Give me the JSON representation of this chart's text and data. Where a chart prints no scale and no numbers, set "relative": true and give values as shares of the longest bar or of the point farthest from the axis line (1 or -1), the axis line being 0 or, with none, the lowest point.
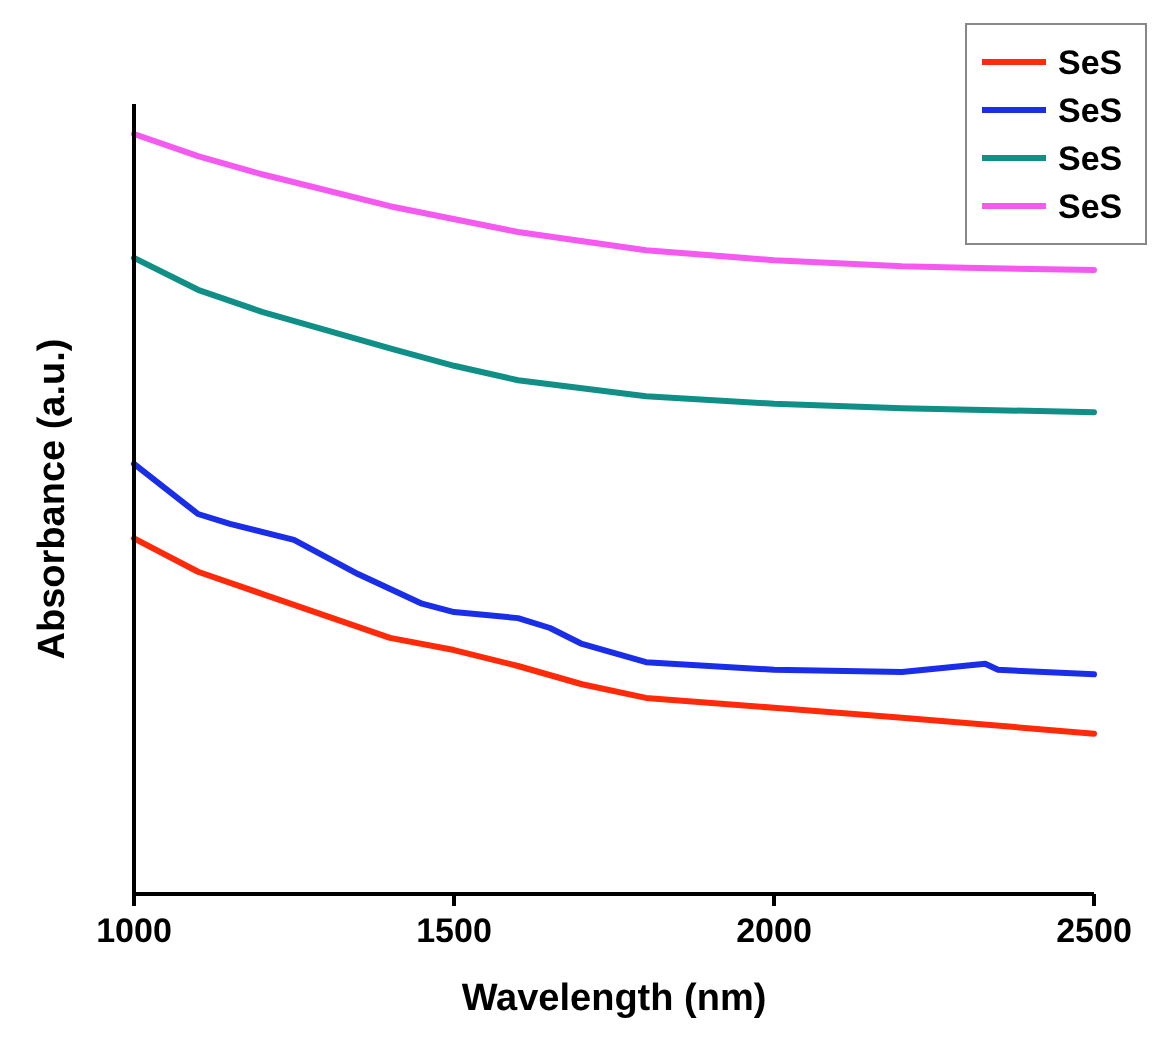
{
  "chart_data": {
    "type": "line",
    "relative": true,
    "xlabel": "Wavelength (nm)",
    "ylabel": "Absorbance (a.u.)",
    "xlim": [
      1000,
      2500
    ],
    "xticks": [
      1000,
      1500,
      2000,
      2500
    ],
    "legend": "top right",
    "line_style": "solid",
    "series": [
      {
        "name": "SeS",
        "color": "#ff2a0a",
        "x": [
          1000,
          1100,
          1200,
          1300,
          1400,
          1500,
          1600,
          1700,
          1800,
          2000,
          2200,
          2500
        ],
        "values": [
          0.468,
          0.424,
          0.395,
          0.366,
          0.337,
          0.321,
          0.3,
          0.276,
          0.258,
          0.245,
          0.232,
          0.211
        ]
      },
      {
        "name": "SeS",
        "color": "#1a2ee8",
        "x": [
          1000,
          1100,
          1150,
          1250,
          1350,
          1450,
          1500,
          1600,
          1650,
          1700,
          1800,
          2000,
          2200,
          2330,
          2350,
          2500
        ],
        "values": [
          0.566,
          0.5,
          0.487,
          0.466,
          0.421,
          0.382,
          0.371,
          0.363,
          0.35,
          0.329,
          0.305,
          0.295,
          0.292,
          0.303,
          0.295,
          0.289
        ]
      },
      {
        "name": "SeS",
        "color": "#0f8f86",
        "x": [
          1000,
          1100,
          1200,
          1400,
          1500,
          1600,
          1800,
          2000,
          2200,
          2500
        ],
        "values": [
          0.837,
          0.795,
          0.766,
          0.718,
          0.695,
          0.676,
          0.655,
          0.645,
          0.639,
          0.634
        ]
      },
      {
        "name": "SeS",
        "color": "#f55af0",
        "x": [
          1000,
          1100,
          1200,
          1400,
          1600,
          1800,
          2000,
          2200,
          2300,
          2500
        ],
        "values": [
          1.0,
          0.971,
          0.947,
          0.905,
          0.871,
          0.847,
          0.834,
          0.826,
          0.824,
          0.821
        ]
      }
    ]
  }
}
